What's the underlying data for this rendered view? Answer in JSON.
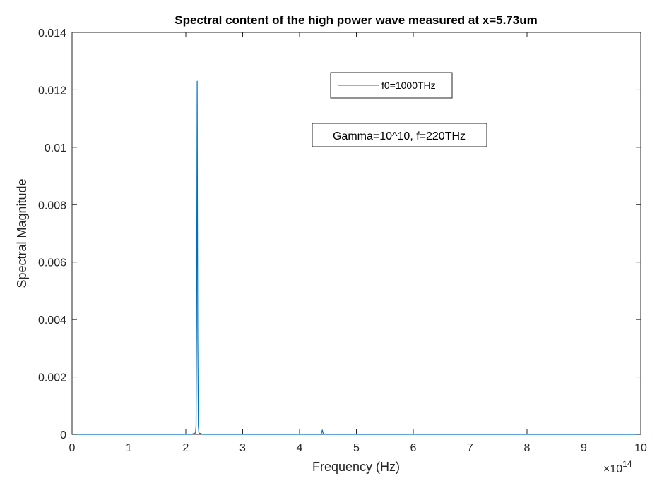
{
  "chart_data": {
    "type": "line",
    "title": "Spectral content of the high power wave measured at x=5.73um",
    "xlabel": "Frequency (Hz)",
    "ylabel": "Spectral Magnitude",
    "x_multiplier": "×10",
    "x_multiplier_exponent": "14",
    "xlim": [
      0,
      10
    ],
    "ylim": [
      0,
      0.014
    ],
    "x_ticks": [
      0,
      1,
      2,
      3,
      4,
      5,
      6,
      7,
      8,
      9,
      10
    ],
    "x_tick_labels": [
      "0",
      "1",
      "2",
      "3",
      "4",
      "5",
      "6",
      "7",
      "8",
      "9",
      "10"
    ],
    "y_ticks": [
      0,
      0.002,
      0.004,
      0.006,
      0.008,
      0.01,
      0.012,
      0.014
    ],
    "y_tick_labels": [
      "0",
      "0.002",
      "0.004",
      "0.006",
      "0.008",
      "0.01",
      "0.012",
      "0.014"
    ],
    "grid": false,
    "legend_position": "top-center",
    "series": [
      {
        "name": "f0=1000THz",
        "color": "#0072BD",
        "x": [
          0,
          2.1,
          2.17,
          2.18,
          2.19,
          2.2,
          2.21,
          2.22,
          2.23,
          2.3,
          4.38,
          4.4,
          4.42,
          10
        ],
        "y": [
          0,
          0,
          5e-05,
          0.0003,
          0.004,
          0.0123,
          0.0035,
          0.0003,
          5e-05,
          0,
          0,
          0.00015,
          0,
          0
        ]
      }
    ],
    "annotation": "Gamma=10^10, f=220THz"
  }
}
